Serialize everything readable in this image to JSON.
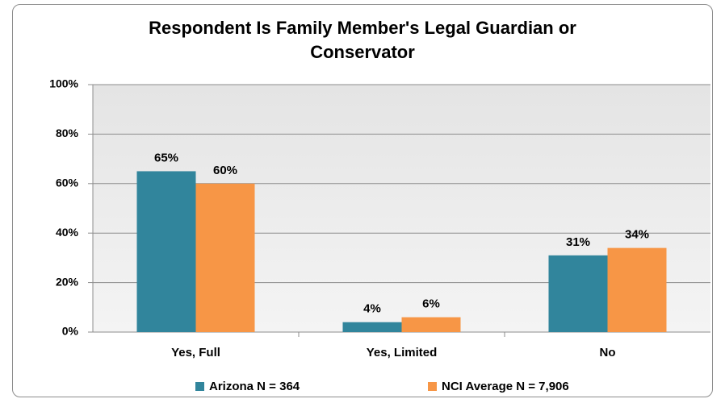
{
  "chart_data": {
    "type": "bar",
    "title": "Respondent Is Family Member's Legal Guardian or Conservator",
    "categories": [
      "Yes, Full",
      "Yes, Limited",
      "No"
    ],
    "series": [
      {
        "name": "Arizona N = 364",
        "color": "#31859c",
        "values": [
          65,
          4,
          31
        ],
        "value_labels": [
          "65%",
          "4%",
          "31%"
        ]
      },
      {
        "name": "NCI Average N = 7,906",
        "color": "#f79646",
        "values": [
          60,
          6,
          34
        ],
        "value_labels": [
          "60%",
          "6%",
          "34%"
        ]
      }
    ],
    "ylim": [
      0,
      100
    ],
    "yticks": [
      {
        "value": 0,
        "label": "0%"
      },
      {
        "value": 20,
        "label": "20%"
      },
      {
        "value": 40,
        "label": "40%"
      },
      {
        "value": 60,
        "label": "60%"
      },
      {
        "value": 80,
        "label": "80%"
      },
      {
        "value": 100,
        "label": "100%"
      }
    ],
    "grid": true,
    "legend": "bottom"
  }
}
